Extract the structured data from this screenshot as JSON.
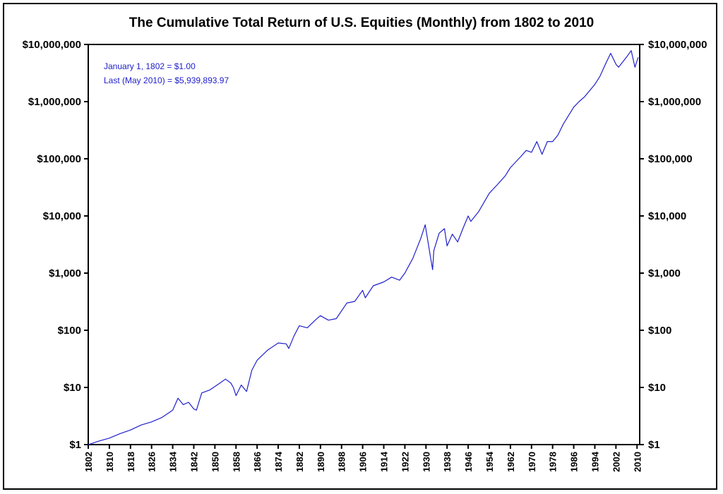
{
  "chart_data": {
    "type": "line",
    "title": "The Cumulative Total Return of U.S. Equities (Monthly) from 1802 to 2010",
    "xlabel": "",
    "ylabel": "",
    "yscale": "log",
    "xlim": [
      1802,
      2011
    ],
    "ylim": [
      1,
      10000000
    ],
    "grid": false,
    "line_color": "#2020cc",
    "x_ticks": [
      {
        "value": 1802,
        "label": "1802"
      },
      {
        "value": 1810,
        "label": "1810"
      },
      {
        "value": 1818,
        "label": "1818"
      },
      {
        "value": 1826,
        "label": "1826"
      },
      {
        "value": 1834,
        "label": "1834"
      },
      {
        "value": 1842,
        "label": "1842"
      },
      {
        "value": 1850,
        "label": "1850"
      },
      {
        "value": 1858,
        "label": "1858"
      },
      {
        "value": 1866,
        "label": "1866"
      },
      {
        "value": 1874,
        "label": "1874"
      },
      {
        "value": 1882,
        "label": "1882"
      },
      {
        "value": 1890,
        "label": "1890"
      },
      {
        "value": 1898,
        "label": "1898"
      },
      {
        "value": 1906,
        "label": "1906"
      },
      {
        "value": 1914,
        "label": "1914"
      },
      {
        "value": 1922,
        "label": "1922"
      },
      {
        "value": 1930,
        "label": "1930"
      },
      {
        "value": 1938,
        "label": "1938"
      },
      {
        "value": 1946,
        "label": "1946"
      },
      {
        "value": 1954,
        "label": "1954"
      },
      {
        "value": 1962,
        "label": "1962"
      },
      {
        "value": 1970,
        "label": "1970"
      },
      {
        "value": 1978,
        "label": "1978"
      },
      {
        "value": 1986,
        "label": "1986"
      },
      {
        "value": 1994,
        "label": "1994"
      },
      {
        "value": 2002,
        "label": "2002"
      },
      {
        "value": 2010,
        "label": "2010"
      }
    ],
    "y_ticks": [
      {
        "value": 1,
        "label": "$1"
      },
      {
        "value": 10,
        "label": "$10"
      },
      {
        "value": 100,
        "label": "$100"
      },
      {
        "value": 1000,
        "label": "$1,000"
      },
      {
        "value": 10000,
        "label": "$10,000"
      },
      {
        "value": 100000,
        "label": "$100,000"
      },
      {
        "value": 1000000,
        "label": "$1,000,000"
      },
      {
        "value": 10000000,
        "label": "$10,000,000"
      }
    ],
    "annotations": [
      "January 1, 1802 = $1.00",
      "Last (May 2010) = $5,939,893.97"
    ],
    "series": [
      {
        "name": "Cumulative Total Return",
        "x": [
          1802,
          1806,
          1810,
          1814,
          1818,
          1822,
          1826,
          1830,
          1834,
          1836,
          1838,
          1840,
          1842,
          1843,
          1845,
          1848,
          1852,
          1854,
          1856,
          1857,
          1858,
          1860,
          1862,
          1864,
          1866,
          1870,
          1874,
          1877,
          1878,
          1880,
          1882,
          1885,
          1888,
          1890,
          1893,
          1896,
          1900,
          1903,
          1906,
          1907,
          1910,
          1914,
          1917,
          1920,
          1922,
          1925,
          1928,
          1929.7,
          1931,
          1932.5,
          1933,
          1935,
          1937,
          1938,
          1940,
          1942,
          1944,
          1946,
          1947,
          1950,
          1954,
          1957,
          1960,
          1962,
          1966,
          1968,
          1970,
          1972,
          1974,
          1976,
          1978,
          1980,
          1982,
          1986,
          1988,
          1990,
          1994,
          1996,
          1998,
          2000,
          2002,
          2003,
          2006,
          2007.8,
          2009.2,
          2010.4
        ],
        "values": [
          1,
          1.15,
          1.3,
          1.55,
          1.8,
          2.2,
          2.5,
          3.0,
          4.0,
          6.5,
          5.0,
          5.5,
          4.2,
          4.0,
          8.0,
          9.0,
          12.0,
          14.0,
          12.0,
          10.0,
          7.2,
          11.0,
          8.5,
          20.0,
          30.0,
          45.0,
          60.0,
          58.0,
          48.0,
          80.0,
          120.0,
          110.0,
          150.0,
          180.0,
          150.0,
          160.0,
          300.0,
          320.0,
          500.0,
          370.0,
          600.0,
          700.0,
          850.0,
          750.0,
          1000.0,
          1800.0,
          4000.0,
          7000.0,
          3000.0,
          1150.0,
          2500.0,
          5000.0,
          6000.0,
          3000.0,
          4800.0,
          3500.0,
          6000.0,
          10000.0,
          8000.0,
          12000.0,
          25000.0,
          35000.0,
          50000.0,
          70000.0,
          110000.0,
          140000.0,
          130000.0,
          200000.0,
          120000.0,
          200000.0,
          200000.0,
          260000.0,
          400000.0,
          800000.0,
          1000000.0,
          1200000.0,
          2000000.0,
          2800000.0,
          4500000.0,
          7000000.0,
          4500000.0,
          4000000.0,
          6000000.0,
          7800000.0,
          4000000.0,
          5939893.97
        ]
      }
    ]
  }
}
